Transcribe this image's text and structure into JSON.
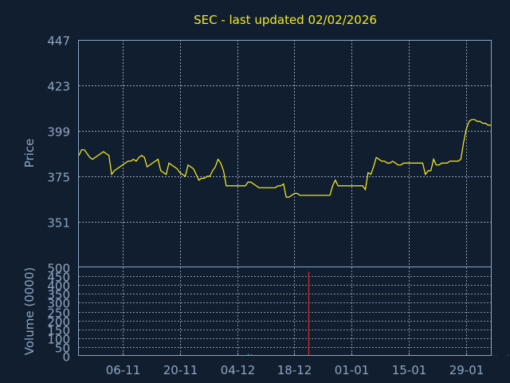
{
  "chart_data": {
    "type": "line",
    "title": "SEC - last updated 02/02/2026",
    "price_panel": {
      "ylabel": "Price",
      "ylim": [
        327,
        447
      ],
      "y_ticks": [
        "447",
        "423",
        "399",
        "375",
        "351"
      ],
      "y_tick_values": [
        447,
        423,
        399,
        375,
        351
      ],
      "grid": true,
      "series": [
        {
          "values": [
            386,
            389,
            389,
            387,
            385,
            384,
            385,
            386,
            387,
            388,
            387,
            386,
            376,
            378,
            379,
            380,
            381,
            382,
            383,
            383,
            384,
            383,
            385,
            386,
            385,
            380,
            381,
            382,
            383,
            384,
            378,
            377,
            376,
            382,
            381,
            380,
            379,
            377,
            376,
            375,
            381,
            380,
            379,
            376,
            373,
            374,
            374,
            375,
            375,
            378,
            380,
            384,
            382,
            378,
            370,
            370,
            370,
            370,
            370,
            370,
            370,
            370,
            372,
            372,
            371,
            370,
            369,
            369,
            369,
            369,
            369,
            369,
            369,
            370,
            370,
            371,
            364,
            364,
            365,
            366,
            366,
            365,
            365,
            365,
            365,
            365,
            365,
            365,
            365,
            365,
            365,
            365,
            365,
            370,
            373,
            370,
            370,
            370,
            370,
            370,
            370,
            370,
            370,
            370,
            370,
            368,
            377,
            376,
            380,
            385,
            384,
            383,
            383,
            382,
            382,
            383,
            382,
            381,
            381,
            382,
            382,
            382,
            382,
            382,
            382,
            382,
            382,
            376,
            378,
            378,
            384,
            381,
            381,
            382,
            382,
            382,
            383,
            383,
            383,
            383,
            384,
            393,
            400,
            404,
            405,
            405,
            404,
            404,
            403,
            403,
            402,
            402
          ]
        }
      ]
    },
    "volume_panel": {
      "ylabel": "Volume (0000)",
      "ylim": [
        0,
        500
      ],
      "y_ticks": [
        "500",
        "450",
        "400",
        "350",
        "300",
        "250",
        "200",
        "150",
        "100",
        "50",
        "0"
      ],
      "y_tick_values": [
        500,
        450,
        400,
        350,
        300,
        250,
        200,
        150,
        100,
        50,
        0
      ],
      "grid": true,
      "bars": [
        {
          "i": 3,
          "value": 3,
          "color": "#c83232"
        },
        {
          "i": 6,
          "value": 2,
          "color": "#c83232"
        },
        {
          "i": 13,
          "value": 2,
          "color": "#c83232"
        },
        {
          "i": 30,
          "value": 3,
          "color": "#2fa85a"
        },
        {
          "i": 52,
          "value": 2,
          "color": "#2fa85a"
        },
        {
          "i": 62,
          "value": 12,
          "color": "#2fa85a"
        },
        {
          "i": 63,
          "value": 9,
          "color": "#2fa85a"
        },
        {
          "i": 77,
          "value": 4,
          "color": "#c83232"
        },
        {
          "i": 84,
          "value": 475,
          "color": "#c83232"
        },
        {
          "i": 90,
          "value": 3,
          "color": "#c83232"
        },
        {
          "i": 96,
          "value": 4,
          "color": "#2fa85a"
        },
        {
          "i": 101,
          "value": 3,
          "color": "#c83232"
        },
        {
          "i": 104,
          "value": 2,
          "color": "#2fa85a"
        },
        {
          "i": 110,
          "value": 3,
          "color": "#c83232"
        },
        {
          "i": 113,
          "value": 2,
          "color": "#2fa85a"
        },
        {
          "i": 117,
          "value": 2,
          "color": "#c83232"
        },
        {
          "i": 121,
          "value": 3,
          "color": "#c83232"
        },
        {
          "i": 125,
          "value": 4,
          "color": "#2fa85a"
        },
        {
          "i": 133,
          "value": 2,
          "color": "#c83232"
        },
        {
          "i": 137,
          "value": 3,
          "color": "#2fa85a"
        },
        {
          "i": 140,
          "value": 2,
          "color": "#2fa85a"
        },
        {
          "i": 143,
          "value": 3,
          "color": "#c83232"
        },
        {
          "i": 150,
          "value": 2,
          "color": "#2fa85a"
        },
        {
          "i": 152,
          "value": 3,
          "color": "#2fa85a"
        },
        {
          "i": 153,
          "value": 2,
          "color": "#c83232"
        },
        {
          "i": 157,
          "value": 4,
          "color": "#2fa85a"
        },
        {
          "i": 158,
          "value": 2,
          "color": "#2fa85a"
        }
      ]
    },
    "x_ticks": [
      "06-11",
      "20-11",
      "04-12",
      "18-12",
      "01-01",
      "15-01",
      "29-01"
    ],
    "x_tick_index": [
      16,
      37,
      58,
      79,
      100,
      121,
      142
    ],
    "n_points": 152,
    "colors": {
      "background": "#111e30",
      "frame": "#8aa4c2",
      "grid": "#a9bcd3",
      "price_line": "#fff21d",
      "title": "#f2ea1e",
      "tick_text": "#8fa6bf",
      "volume_up": "#2fa85a",
      "volume_down": "#c83232"
    }
  }
}
